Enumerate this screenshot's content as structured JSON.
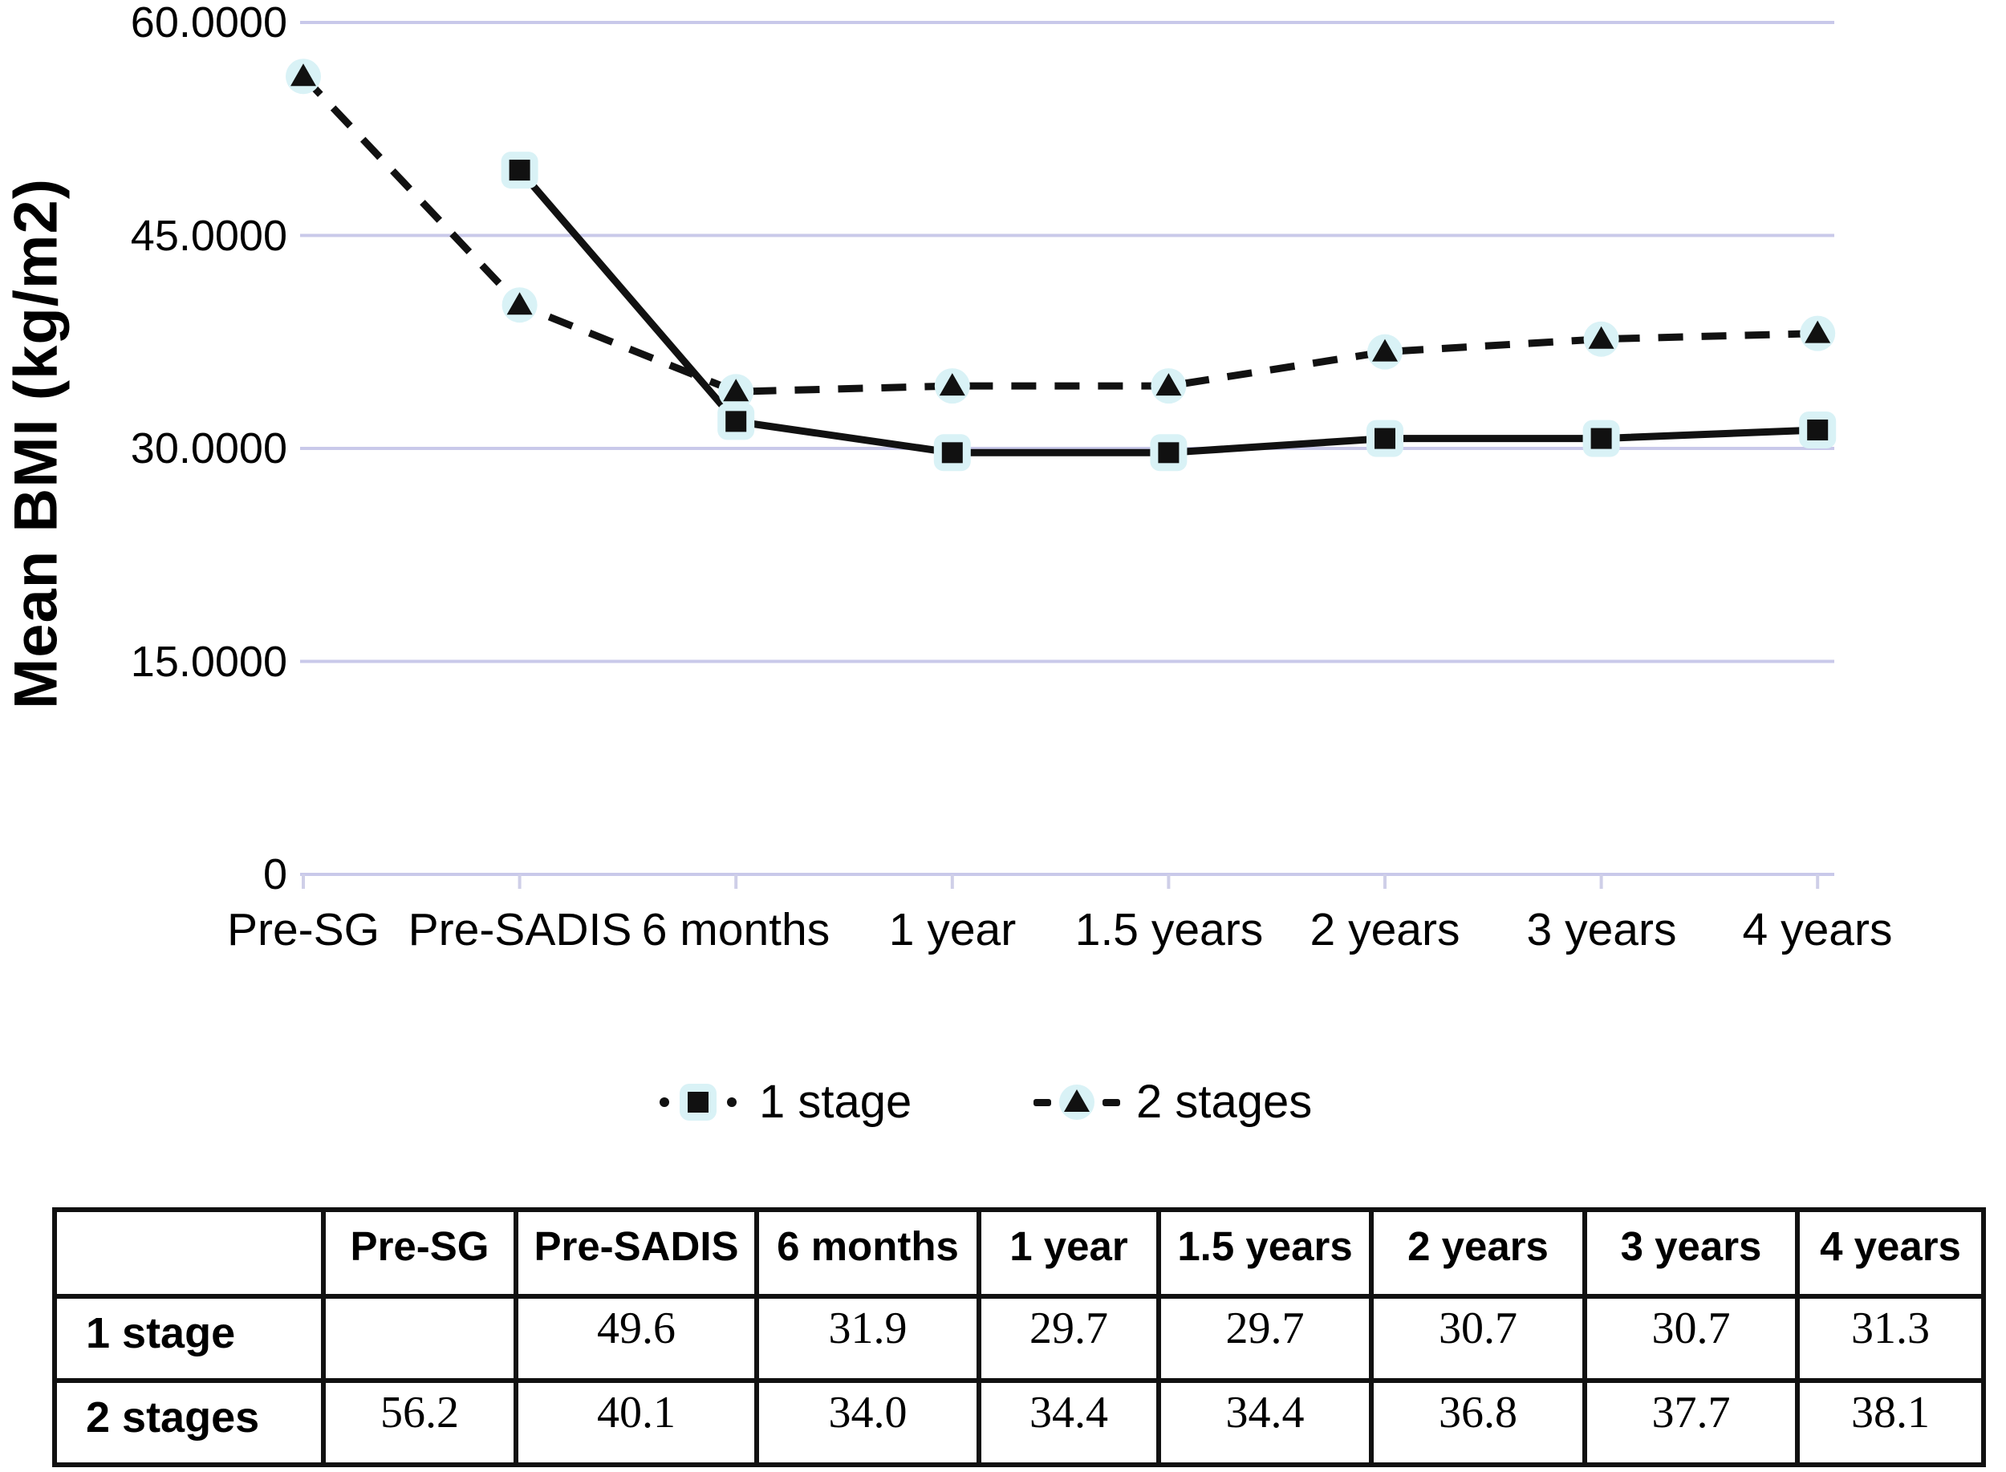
{
  "chart_data": {
    "type": "line",
    "title": "",
    "xlabel": "",
    "ylabel": "Mean BMI (kg/m2)",
    "categories": [
      "Pre-SG",
      "Pre-SADIS",
      "6 months",
      "1 year",
      "1.5 years",
      "2 years",
      "3 years",
      "4 years"
    ],
    "series": [
      {
        "name": "1 stage",
        "marker": "square",
        "line_style": "solid",
        "values": [
          null,
          49.6,
          31.9,
          29.7,
          29.7,
          30.7,
          30.7,
          31.3
        ]
      },
      {
        "name": "2 stages",
        "marker": "triangle",
        "line_style": "dashed",
        "values": [
          56.2,
          40.1,
          34.0,
          34.4,
          34.4,
          36.8,
          37.7,
          38.1
        ]
      }
    ],
    "ylim": [
      0,
      60
    ],
    "y_ticks": [
      60,
      45,
      30,
      15,
      0
    ],
    "y_tick_labels": [
      "60.0000",
      "45.0000",
      "30.0000",
      "15.0000",
      "0"
    ],
    "grid": "horizontal",
    "legend_position": "bottom",
    "colors": {
      "line": "#111111",
      "grid": "#c9c9ea",
      "tick": "#cfcfe8",
      "marker_halo": "#d9f2f6",
      "text": "#000000",
      "table_border": "#111111"
    }
  },
  "table": {
    "column_headers": [
      "",
      "Pre-SG",
      "Pre-SADIS",
      "6 months",
      "1 year",
      "1.5 years",
      "2 years",
      "3 years",
      "4 years"
    ],
    "rows": [
      {
        "label": "1 stage",
        "values": [
          "",
          "49.6",
          "31.9",
          "29.7",
          "29.7",
          "30.7",
          "30.7",
          "31.3"
        ]
      },
      {
        "label": "2 stages",
        "values": [
          "56.2",
          "40.1",
          "34.0",
          "34.4",
          "34.4",
          "36.8",
          "37.7",
          "38.1"
        ]
      }
    ]
  }
}
